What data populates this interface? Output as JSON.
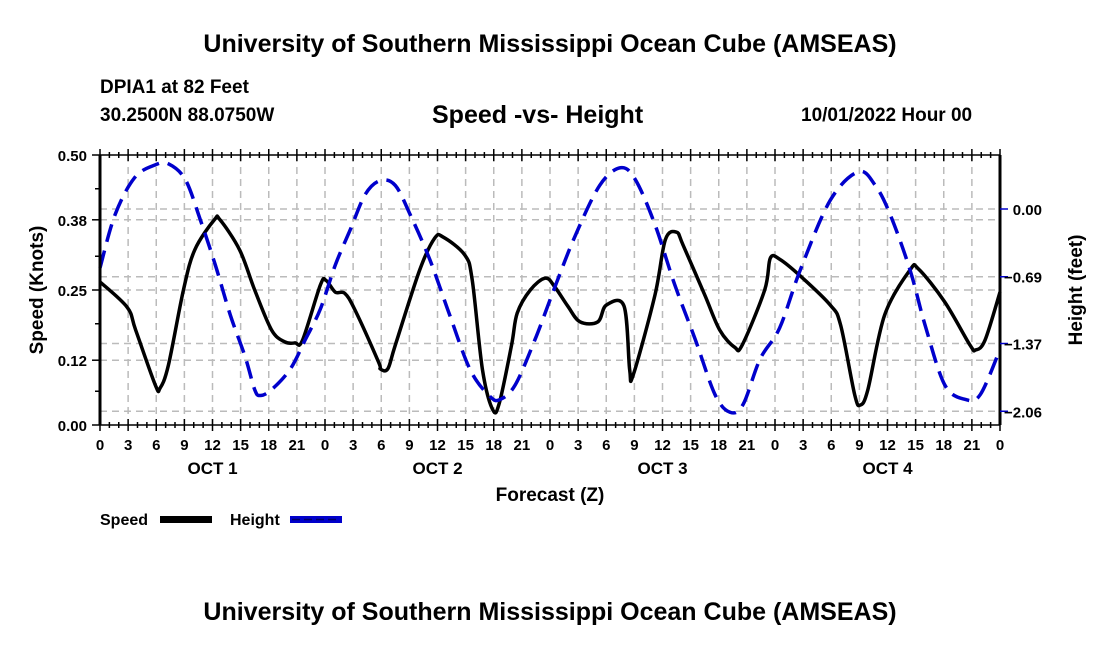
{
  "header": {
    "title": "University of Southern Mississippi Ocean Cube (AMSEAS)",
    "station": "DPIA1 at 82 Feet",
    "coordinates": "30.2500N  88.0750W",
    "subtitle": "Speed -vs- Height",
    "datetime": "10/01/2022 Hour 00"
  },
  "footer": {
    "title": "University of Southern Mississippi Ocean Cube (AMSEAS)"
  },
  "chart_data": {
    "type": "line",
    "title": "Speed -vs- Height",
    "xlabel": "Forecast (Z)",
    "ylabel": "Speed (Knots)",
    "y2label": "Height (feet)",
    "xlim": [
      0,
      96
    ],
    "ylim": [
      0,
      0.5
    ],
    "y2lim": [
      -2.2,
      0.55
    ],
    "grid": true,
    "legend_position": "bottom-left",
    "x_tick_labels": [
      "0",
      "3",
      "6",
      "9",
      "12",
      "15",
      "18",
      "21",
      "0",
      "3",
      "6",
      "9",
      "12",
      "15",
      "18",
      "21",
      "0",
      "3",
      "6",
      "9",
      "12",
      "15",
      "18",
      "21",
      "0",
      "3",
      "6",
      "9",
      "12",
      "15",
      "18",
      "21",
      "0"
    ],
    "day_labels": [
      "OCT 1",
      "OCT 2",
      "OCT 3",
      "OCT 4"
    ],
    "y_ticks": [
      0.0,
      0.12,
      0.25,
      0.38,
      0.5
    ],
    "y_tick_labels": [
      "0.00",
      "0.12",
      "0.25",
      "0.38",
      "0.50"
    ],
    "y2_ticks": [
      0.0,
      -0.69,
      -1.37,
      -2.06
    ],
    "y2_tick_labels": [
      "0.00",
      "−0.69",
      "−1.37",
      "−2.06"
    ],
    "series": [
      {
        "name": "Speed",
        "axis": "left",
        "color": "#000000",
        "style": "solid",
        "x": [
          0,
          2.9,
          3.8,
          5.9,
          6.4,
          7.3,
          8.9,
          10.1,
          12.2,
          12.8,
          14.9,
          16.5,
          18.3,
          19.7,
          20.8,
          21.6,
          23.5,
          24.1,
          25.1,
          26.1,
          27.2,
          29.7,
          29.9,
          30.7,
          31.5,
          34.1,
          35.7,
          36.6,
          38.9,
          39.7,
          40.8,
          41.9,
          42.6,
          43.9,
          44.5,
          45.9,
          47.5,
          48.5,
          49.9,
          51.2,
          53.1,
          54.0,
          55.9,
          56.5,
          56.9,
          59.2,
          60.3,
          61.5,
          62.2,
          64.5,
          66.1,
          67.7,
          68.5,
          70.9,
          71.5,
          72.5,
          74.7,
          77.9,
          79.0,
          80.5,
          81.1,
          81.9,
          83.7,
          86.4,
          87.3,
          90.1,
          92.8,
          93.4,
          94.4,
          96.0
        ],
        "values": [
          0.265,
          0.218,
          0.176,
          0.074,
          0.068,
          0.111,
          0.25,
          0.324,
          0.38,
          0.38,
          0.324,
          0.25,
          0.176,
          0.154,
          0.152,
          0.157,
          0.259,
          0.268,
          0.246,
          0.244,
          0.213,
          0.117,
          0.104,
          0.104,
          0.148,
          0.287,
          0.346,
          0.348,
          0.315,
          0.269,
          0.102,
          0.028,
          0.041,
          0.148,
          0.207,
          0.25,
          0.272,
          0.256,
          0.22,
          0.191,
          0.191,
          0.222,
          0.22,
          0.102,
          0.094,
          0.241,
          0.343,
          0.357,
          0.333,
          0.241,
          0.176,
          0.144,
          0.148,
          0.25,
          0.309,
          0.307,
          0.276,
          0.222,
          0.185,
          0.056,
          0.037,
          0.065,
          0.204,
          0.287,
          0.289,
          0.228,
          0.148,
          0.139,
          0.157,
          0.246
        ]
      },
      {
        "name": "Height",
        "axis": "right",
        "color": "#0000cc",
        "style": "dashed",
        "x": [
          0,
          1.6,
          3.7,
          5.9,
          7.3,
          9.1,
          10.7,
          12.3,
          13.9,
          15.5,
          16.5,
          17.1,
          18.3,
          20.3,
          21.9,
          23.5,
          25.1,
          26.7,
          28.3,
          29.9,
          31.5,
          33.1,
          35.2,
          37.3,
          39.5,
          41.6,
          42.7,
          44.3,
          46.4,
          48.5,
          50.7,
          53.3,
          55.5,
          57.1,
          59.2,
          61.3,
          63.5,
          65.6,
          67.2,
          68.6,
          70.4,
          72.5,
          74.7,
          77.9,
          80.9,
          82.7,
          84.3,
          86.4,
          88.0,
          90.1,
          92.3,
          93.9,
          96.0
        ],
        "values": [
          -0.6,
          -0.06,
          0.32,
          0.45,
          0.46,
          0.3,
          -0.11,
          -0.57,
          -1.08,
          -1.51,
          -1.84,
          -1.9,
          -1.84,
          -1.63,
          -1.33,
          -1.02,
          -0.57,
          -0.21,
          0.15,
          0.29,
          0.24,
          -0.06,
          -0.52,
          -1.08,
          -1.64,
          -1.91,
          -1.94,
          -1.79,
          -1.33,
          -0.8,
          -0.27,
          0.24,
          0.42,
          0.3,
          -0.16,
          -0.77,
          -1.33,
          -1.89,
          -2.07,
          -1.99,
          -1.53,
          -1.21,
          -0.62,
          0.09,
          0.38,
          0.24,
          -0.06,
          -0.62,
          -1.18,
          -1.79,
          -1.94,
          -1.89,
          -1.43
        ]
      }
    ]
  },
  "legend": {
    "items": [
      {
        "label": "Speed",
        "color": "#000000",
        "style": "solid"
      },
      {
        "label": "Height",
        "color": "#0000cc",
        "style": "dashed"
      }
    ]
  }
}
